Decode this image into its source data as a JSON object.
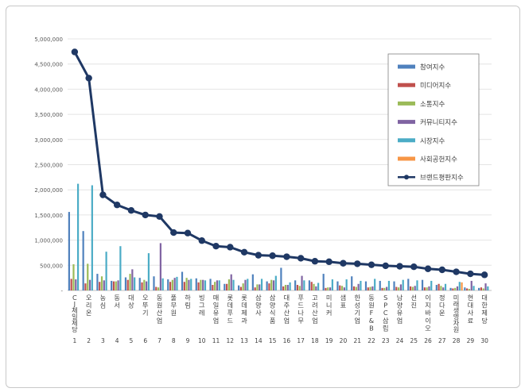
{
  "chart_data": {
    "type": "bar",
    "title": "",
    "xlabel": "",
    "ylabel": "",
    "ylim": [
      0,
      5000000
    ],
    "yticks": [
      "-",
      "500,000",
      "1,000,000",
      "1,500,000",
      "2,000,000",
      "2,500,000",
      "3,000,000",
      "3,500,000",
      "4,000,000",
      "4,500,000",
      "5,000,000"
    ],
    "grid": true,
    "legend_position": "top-right",
    "ranks": [
      "1",
      "2",
      "3",
      "4",
      "5",
      "6",
      "7",
      "8",
      "9",
      "10",
      "11",
      "12",
      "13",
      "14",
      "15",
      "16",
      "17",
      "18",
      "19",
      "20",
      "21",
      "22",
      "23",
      "24",
      "25",
      "26",
      "27",
      "28",
      "29",
      "30"
    ],
    "categories": [
      "CJ제일제당",
      "오리온",
      "농심",
      "동서",
      "대상",
      "오뚜기",
      "동원산업",
      "풀무원",
      "하림",
      "빙그레",
      "매일유업",
      "롯데푸드",
      "롯데제과",
      "삼양사",
      "삼양식품",
      "대주산업",
      "푸드나무",
      "고려산업",
      "미니커",
      "샘표",
      "한성기업",
      "동원F&B",
      "SPC삼립",
      "남양유업",
      "선진",
      "이지바이오",
      "정다운",
      "미래생명자원",
      "현대사료",
      "대한제당"
    ],
    "series": [
      {
        "name": "참여지수",
        "color": "#4f81bd",
        "values": [
          1560000,
          1180000,
          330000,
          190000,
          260000,
          250000,
          280000,
          220000,
          370000,
          240000,
          230000,
          130000,
          100000,
          320000,
          180000,
          450000,
          200000,
          200000,
          330000,
          180000,
          280000,
          180000,
          190000,
          180000,
          230000,
          210000,
          110000,
          50000,
          60000,
          50000
        ]
      },
      {
        "name": "미디어지수",
        "color": "#c0504d",
        "values": [
          230000,
          140000,
          170000,
          180000,
          210000,
          160000,
          70000,
          170000,
          170000,
          160000,
          110000,
          130000,
          70000,
          60000,
          140000,
          80000,
          110000,
          170000,
          50000,
          100000,
          80000,
          60000,
          50000,
          70000,
          80000,
          60000,
          130000,
          40000,
          40000,
          60000
        ]
      },
      {
        "name": "소통지수",
        "color": "#9bbb59",
        "values": [
          520000,
          530000,
          280000,
          180000,
          330000,
          210000,
          60000,
          210000,
          250000,
          210000,
          170000,
          220000,
          140000,
          120000,
          210000,
          110000,
          90000,
          130000,
          60000,
          90000,
          70000,
          70000,
          50000,
          60000,
          70000,
          60000,
          90000,
          50000,
          30000,
          40000
        ]
      },
      {
        "name": "커뮤니티지수",
        "color": "#8064a2",
        "values": [
          220000,
          210000,
          200000,
          200000,
          420000,
          180000,
          940000,
          250000,
          210000,
          210000,
          200000,
          320000,
          210000,
          120000,
          200000,
          110000,
          290000,
          80000,
          60000,
          60000,
          130000,
          80000,
          70000,
          120000,
          90000,
          80000,
          60000,
          80000,
          190000,
          140000
        ]
      },
      {
        "name": "시장지수",
        "color": "#4bacc6",
        "values": [
          2120000,
          2090000,
          770000,
          880000,
          260000,
          740000,
          240000,
          270000,
          230000,
          200000,
          200000,
          210000,
          230000,
          230000,
          290000,
          160000,
          200000,
          150000,
          220000,
          220000,
          190000,
          230000,
          190000,
          210000,
          200000,
          190000,
          130000,
          170000,
          90000,
          80000
        ]
      },
      {
        "name": "사회공헌지수",
        "color": "#f79646",
        "values": [
          0,
          0,
          0,
          0,
          0,
          0,
          0,
          0,
          0,
          0,
          0,
          0,
          0,
          0,
          0,
          0,
          0,
          0,
          0,
          0,
          0,
          0,
          0,
          0,
          0,
          0,
          0,
          160000,
          0,
          0
        ]
      },
      {
        "name": "브랜드평판지수",
        "color": "#1f3864",
        "type": "line",
        "values": [
          4740000,
          4220000,
          1900000,
          1700000,
          1590000,
          1500000,
          1470000,
          1150000,
          1140000,
          990000,
          880000,
          860000,
          760000,
          700000,
          690000,
          670000,
          640000,
          580000,
          570000,
          540000,
          530000,
          510000,
          490000,
          480000,
          470000,
          430000,
          410000,
          370000,
          330000,
          310000
        ]
      }
    ]
  }
}
